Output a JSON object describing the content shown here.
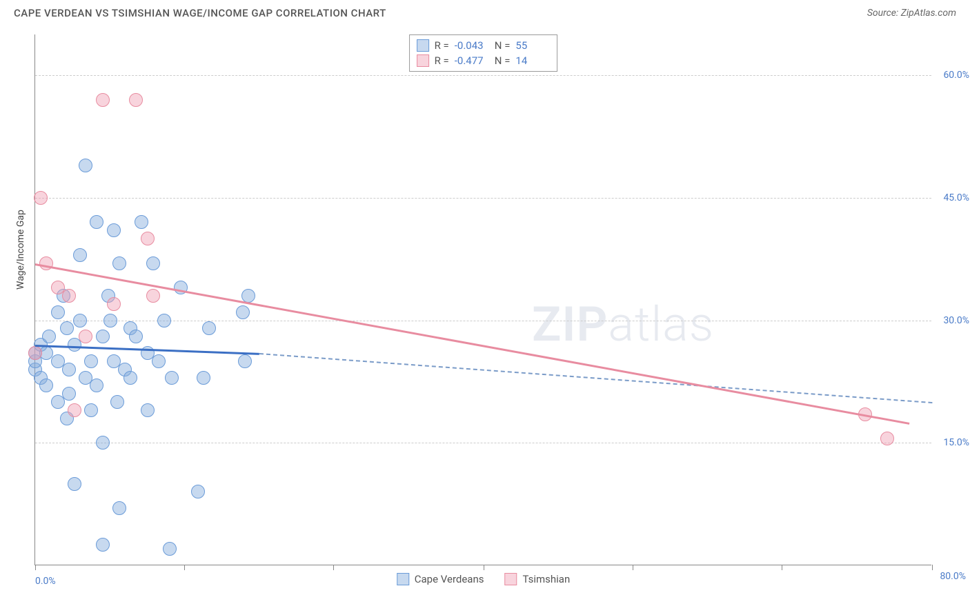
{
  "title": "CAPE VERDEAN VS TSIMSHIAN WAGE/INCOME GAP CORRELATION CHART",
  "source": "Source: ZipAtlas.com",
  "watermark": {
    "bold": "ZIP",
    "rest": "atlas"
  },
  "chart": {
    "type": "scatter",
    "ylabel": "Wage/Income Gap",
    "xlim": [
      0,
      80
    ],
    "ylim": [
      0,
      65
    ],
    "x_ticks": [
      0,
      13.3,
      26.6,
      40,
      53.3,
      66.6,
      80
    ],
    "x_tick_labels": {
      "0": "0.0%",
      "80": "80.0%"
    },
    "y_gridlines": [
      15,
      30,
      45,
      60
    ],
    "y_tick_labels": {
      "15": "15.0%",
      "30": "30.0%",
      "45": "45.0%",
      "60": "60.0%"
    },
    "background_color": "#ffffff",
    "grid_color": "#cccccc",
    "axis_color": "#888888",
    "label_color": "#4a7bc8",
    "series": [
      {
        "name": "Cape Verdeans",
        "color_fill": "rgba(130,170,220,0.45)",
        "color_stroke": "#6a9bd8",
        "marker_radius": 10,
        "R": "-0.043",
        "N": "55",
        "trend": {
          "x1": 0,
          "y1": 27,
          "x2": 20,
          "y2": 26,
          "dash_to_x": 80,
          "dash_to_y": 20,
          "color": "#3b6fc4"
        },
        "points": [
          [
            0,
            24
          ],
          [
            0,
            25
          ],
          [
            0,
            26
          ],
          [
            0.5,
            27
          ],
          [
            0.5,
            23
          ],
          [
            1,
            22
          ],
          [
            1,
            26
          ],
          [
            1.2,
            28
          ],
          [
            2,
            20
          ],
          [
            2,
            25
          ],
          [
            2,
            31
          ],
          [
            2.5,
            33
          ],
          [
            2.8,
            18
          ],
          [
            2.8,
            29
          ],
          [
            3,
            24
          ],
          [
            3,
            21
          ],
          [
            3.5,
            27
          ],
          [
            3.5,
            10
          ],
          [
            4,
            38
          ],
          [
            4,
            30
          ],
          [
            4.5,
            49
          ],
          [
            4.5,
            23
          ],
          [
            5,
            19
          ],
          [
            5,
            25
          ],
          [
            5.5,
            42
          ],
          [
            5.5,
            22
          ],
          [
            6,
            28
          ],
          [
            6,
            2.5
          ],
          [
            6,
            15
          ],
          [
            6.5,
            33
          ],
          [
            6.7,
            30
          ],
          [
            7,
            25
          ],
          [
            7,
            41
          ],
          [
            7.3,
            20
          ],
          [
            7.5,
            37
          ],
          [
            7.5,
            7
          ],
          [
            8,
            24
          ],
          [
            8.5,
            23
          ],
          [
            8.5,
            29
          ],
          [
            9,
            28
          ],
          [
            9.5,
            42
          ],
          [
            10,
            19
          ],
          [
            10,
            26
          ],
          [
            10.5,
            37
          ],
          [
            11,
            25
          ],
          [
            11.5,
            30
          ],
          [
            12,
            2
          ],
          [
            12.2,
            23
          ],
          [
            13,
            34
          ],
          [
            14.5,
            9
          ],
          [
            15,
            23
          ],
          [
            15.5,
            29
          ],
          [
            18.5,
            31
          ],
          [
            18.7,
            25
          ],
          [
            19,
            33
          ]
        ]
      },
      {
        "name": "Tsimshian",
        "color_fill": "rgba(240,160,180,0.45)",
        "color_stroke": "#e88ca0",
        "marker_radius": 10,
        "R": "-0.477",
        "N": "14",
        "trend": {
          "x1": 0,
          "y1": 37,
          "x2": 78,
          "y2": 17.5,
          "color": "#e88ca0"
        },
        "points": [
          [
            0,
            26
          ],
          [
            0.5,
            45
          ],
          [
            1,
            37
          ],
          [
            2,
            34
          ],
          [
            3,
            33
          ],
          [
            3.5,
            19
          ],
          [
            4.5,
            28
          ],
          [
            6,
            57
          ],
          [
            7,
            32
          ],
          [
            9,
            57
          ],
          [
            10,
            40
          ],
          [
            10.5,
            33
          ],
          [
            74,
            18.5
          ],
          [
            76,
            15.5
          ]
        ]
      }
    ]
  },
  "stats_legend": {
    "rows": [
      {
        "swatch_fill": "rgba(130,170,220,0.45)",
        "swatch_stroke": "#6a9bd8",
        "r_label": "R =",
        "r_val": "-0.043",
        "n_label": "N =",
        "n_val": "55"
      },
      {
        "swatch_fill": "rgba(240,160,180,0.45)",
        "swatch_stroke": "#e88ca0",
        "r_label": "R =",
        "r_val": "-0.477",
        "n_label": "N =",
        "n_val": "14"
      }
    ]
  },
  "bottom_legend": [
    {
      "swatch_fill": "rgba(130,170,220,0.45)",
      "swatch_stroke": "#6a9bd8",
      "label": "Cape Verdeans"
    },
    {
      "swatch_fill": "rgba(240,160,180,0.45)",
      "swatch_stroke": "#e88ca0",
      "label": "Tsimshian"
    }
  ]
}
